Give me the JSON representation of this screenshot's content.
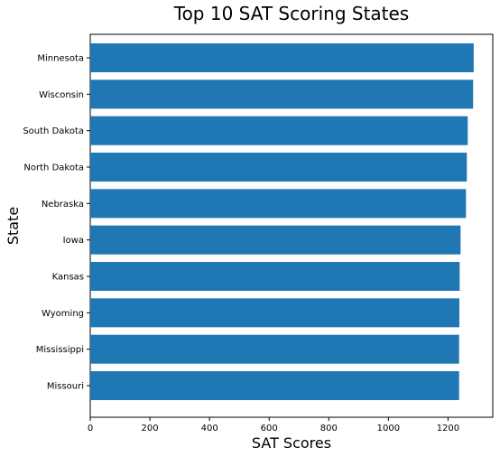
{
  "chart_data": {
    "type": "bar",
    "orientation": "horizontal",
    "title": "Top 10 SAT Scoring States",
    "xlabel": "SAT Scores",
    "ylabel": "State",
    "categories": [
      "Minnesota",
      "Wisconsin",
      "South Dakota",
      "North Dakota",
      "Nebraska",
      "Iowa",
      "Kansas",
      "Wyoming",
      "Mississippi",
      "Missouri"
    ],
    "values": [
      1286,
      1284,
      1266,
      1263,
      1260,
      1242,
      1239,
      1238,
      1237,
      1237
    ],
    "xlim": [
      0,
      1350
    ],
    "xticks": [
      "0",
      "200",
      "400",
      "600",
      "800",
      "1000",
      "1200"
    ],
    "grid": false,
    "bar_color": "#1f77b4"
  }
}
